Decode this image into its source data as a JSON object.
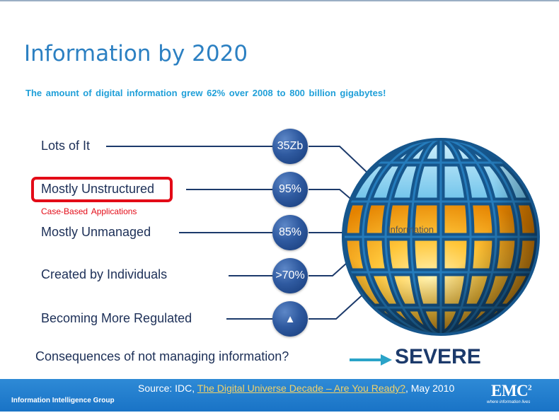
{
  "slide": {
    "title": "Information by 2020",
    "subtitle": "The amount of digital information grew 62% over 2008 to 800 billion gigabytes!"
  },
  "items": [
    {
      "label": "Lots of It",
      "badge": "35Zb"
    },
    {
      "label": "Mostly Unstructured",
      "badge": "95%",
      "sublabel": "Case-Based Applications"
    },
    {
      "label": "Mostly Unmanaged",
      "badge": "85%"
    },
    {
      "label": "Created by Individuals",
      "badge": ">70%"
    },
    {
      "label": "Becoming More Regulated",
      "badge": "▲"
    }
  ],
  "globe": {
    "label": "Information",
    "icon": "globe-icon"
  },
  "consequence": {
    "question": "Consequences of not managing information?",
    "answer": "SEVERE",
    "arrow_color": "#2aa3c8"
  },
  "footer": {
    "source_prefix": "Source: IDC, ",
    "source_link": "The Digital Universe Decade – Are You Ready?",
    "source_suffix": ", May 2010",
    "group": "Information Intelligence Group",
    "logo": "EMC",
    "logo_sup": "2",
    "logo_tagline": "where information lives"
  },
  "colors": {
    "title": "#2c80c2",
    "subtitle": "#1f9fd8",
    "text": "#1c2f57",
    "highlight": "#e30b17",
    "footer": "#1f7cca"
  }
}
